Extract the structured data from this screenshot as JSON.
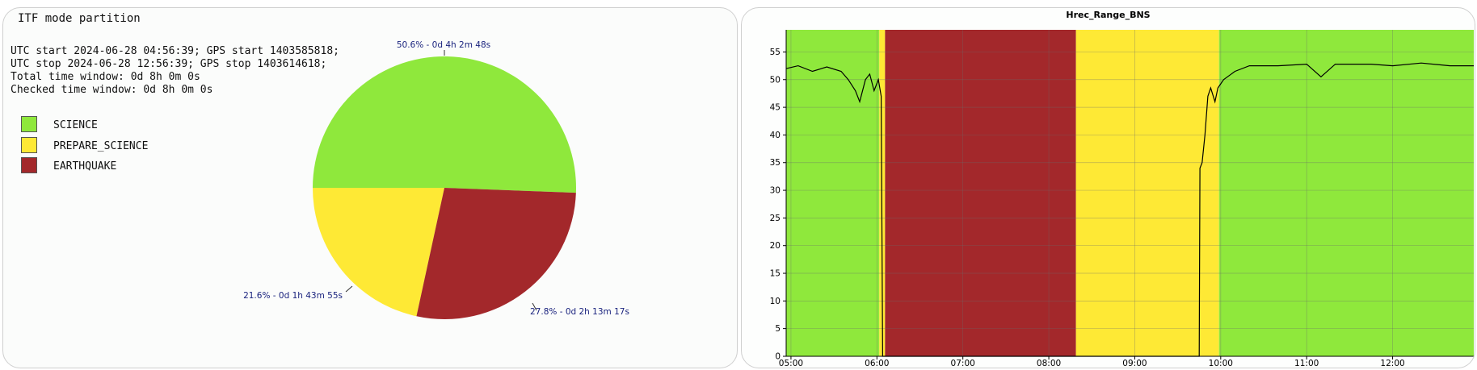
{
  "pie_panel": {
    "title": "ITF mode partition",
    "info_lines": [
      "UTC start 2024-06-28 04:56:39; GPS start 1403585818;",
      "UTC stop 2024-06-28 12:56:39; GPS stop 1403614618;",
      "Total time window: 0d 8h 0m 0s",
      "Checked time window: 0d 8h 0m 0s"
    ]
  },
  "timeseries_panel": {
    "title": "Hrec_Range_BNS"
  },
  "chart_data": [
    {
      "type": "pie",
      "title": "ITF mode partition",
      "slices": [
        {
          "label": "SCIENCE",
          "value": 50.6,
          "annotation": "50.6% - 0d 4h 2m 48s",
          "color": "#8fe83c"
        },
        {
          "label": "PREPARE_SCIENCE",
          "value": 21.6,
          "annotation": "21.6% - 0d 1h 43m 55s",
          "color": "#fee935"
        },
        {
          "label": "EARTHQUAKE",
          "value": 27.8,
          "annotation": "27.8% - 0d 2h 13m 17s",
          "color": "#a3282b"
        }
      ],
      "legend": [
        "SCIENCE",
        "PREPARE_SCIENCE",
        "EARTHQUAKE"
      ],
      "label_color": "#1a237e"
    },
    {
      "type": "line",
      "title": "Hrec_Range_BNS",
      "xlabel": "",
      "ylabel": "",
      "xlim": [
        "04:56:39",
        "12:56:39"
      ],
      "ylim": [
        0,
        59
      ],
      "x_ticks": [
        "05:00",
        "06:00",
        "07:00",
        "08:00",
        "09:00",
        "10:00",
        "11:00",
        "12:00"
      ],
      "y_ticks": [
        0,
        5,
        10,
        15,
        20,
        25,
        30,
        35,
        40,
        45,
        50,
        55
      ],
      "grid": true,
      "background_bands": [
        {
          "mode": "SCIENCE",
          "start": "04:56:39",
          "end": "06:01:40",
          "color": "#8fe83c"
        },
        {
          "mode": "PREPARE_SCIENCE",
          "start": "06:01:40",
          "end": "06:05:40",
          "color": "#fee935"
        },
        {
          "mode": "EARTHQUAKE",
          "start": "06:05:40",
          "end": "08:18:57",
          "color": "#a3282b"
        },
        {
          "mode": "PREPARE_SCIENCE",
          "start": "08:18:57",
          "end": "09:58:48",
          "color": "#fee935"
        },
        {
          "mode": "SCIENCE",
          "start": "09:58:48",
          "end": "12:56:39",
          "color": "#8fe83c"
        }
      ],
      "series": [
        {
          "line_color": "#000000",
          "points": [
            [
              "04:56:39",
              52
            ],
            [
              "05:05:00",
              52.5
            ],
            [
              "05:15:00",
              51.5
            ],
            [
              "05:25:00",
              52.3
            ],
            [
              "05:35:00",
              51.5
            ],
            [
              "05:40:00",
              50
            ],
            [
              "05:45:00",
              48
            ],
            [
              "05:48:00",
              46
            ],
            [
              "05:52:00",
              50
            ],
            [
              "05:55:00",
              51
            ],
            [
              "05:58:00",
              48
            ],
            [
              "06:01:00",
              50
            ],
            [
              "06:03:00",
              47
            ],
            [
              "06:04:00",
              0
            ],
            [
              "09:45:00",
              0
            ],
            [
              "09:45:30",
              34
            ],
            [
              "09:47:00",
              35
            ],
            [
              "09:49:00",
              40
            ],
            [
              "09:51:00",
              47
            ],
            [
              "09:53:00",
              48.5
            ],
            [
              "09:56:00",
              46
            ],
            [
              "09:58:00",
              48.5
            ],
            [
              "10:02:00",
              50
            ],
            [
              "10:10:00",
              51.5
            ],
            [
              "10:20:00",
              52.5
            ],
            [
              "10:40:00",
              52.5
            ],
            [
              "11:00:00",
              52.8
            ],
            [
              "11:10:00",
              50.5
            ],
            [
              "11:20:00",
              52.8
            ],
            [
              "11:45:00",
              52.8
            ],
            [
              "12:00:00",
              52.5
            ],
            [
              "12:20:00",
              53
            ],
            [
              "12:40:00",
              52.5
            ],
            [
              "12:56:39",
              52.5
            ]
          ]
        }
      ]
    }
  ]
}
